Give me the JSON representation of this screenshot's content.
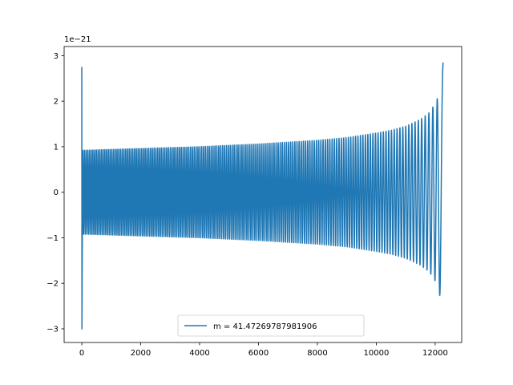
{
  "chart_data": {
    "type": "line",
    "title": "",
    "xlabel": "",
    "ylabel": "",
    "xlim": [
      -600,
      12900
    ],
    "ylim": [
      -3.3,
      3.2
    ],
    "y_offset_label": "1e−21",
    "x_ticks": [
      0,
      2000,
      4000,
      6000,
      8000,
      10000,
      12000
    ],
    "x_tick_labels": [
      "0",
      "2000",
      "4000",
      "6000",
      "8000",
      "10000",
      "12000"
    ],
    "y_ticks": [
      -3,
      -2,
      -1,
      0,
      1,
      2,
      3
    ],
    "y_tick_labels": [
      "−3",
      "−2",
      "−1",
      "0",
      "1",
      "2",
      "3"
    ],
    "grid": false,
    "legend_position": "lower center",
    "series": [
      {
        "name": "m = 41.47269787981906",
        "color": "#1f77b4",
        "x_start": 0,
        "x_end": 12270,
        "initial_spike_max": 2.75,
        "initial_spike_min": -3.0,
        "envelope": {
          "x": [
            0,
            2000,
            4000,
            6000,
            8000,
            9000,
            10000,
            10500,
            11000,
            11500,
            11800,
            12000,
            12100,
            12200,
            12270
          ],
          "amplitude": [
            0.92,
            0.96,
            1.0,
            1.06,
            1.14,
            1.2,
            1.3,
            1.36,
            1.45,
            1.6,
            1.75,
            1.95,
            2.1,
            2.4,
            2.85
          ]
        },
        "cycles": 170
      }
    ]
  }
}
